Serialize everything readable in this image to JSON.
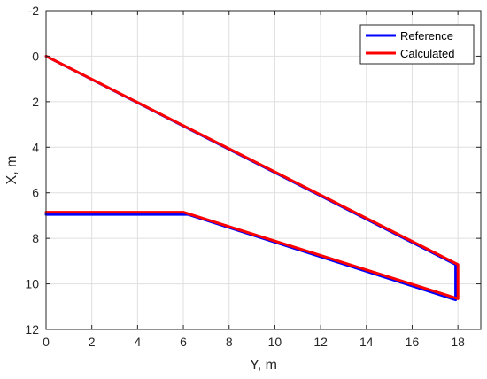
{
  "chart_data": {
    "type": "line",
    "title": "",
    "xlabel": "Y, m",
    "ylabel": "X, m",
    "xlim": [
      0,
      19
    ],
    "ylim": [
      -2,
      12
    ],
    "y_reversed": true,
    "xticks": [
      "0",
      "2",
      "4",
      "6",
      "8",
      "10",
      "12",
      "14",
      "16",
      "18"
    ],
    "yticks": [
      "-2",
      "0",
      "2",
      "4",
      "6",
      "8",
      "10",
      "12"
    ],
    "grid": true,
    "legend_position": "top-right",
    "series": [
      {
        "name": "Reference",
        "color": "#0000ff",
        "x": [
          0,
          6.2,
          17.9,
          17.9,
          0
        ],
        "y": [
          6.95,
          6.95,
          10.7,
          9.15,
          0
        ]
      },
      {
        "name": "Calculated",
        "color": "#ff0000",
        "x": [
          0,
          6.0,
          18.0,
          18.0,
          0
        ],
        "y": [
          6.85,
          6.85,
          10.65,
          9.15,
          0
        ]
      }
    ]
  }
}
